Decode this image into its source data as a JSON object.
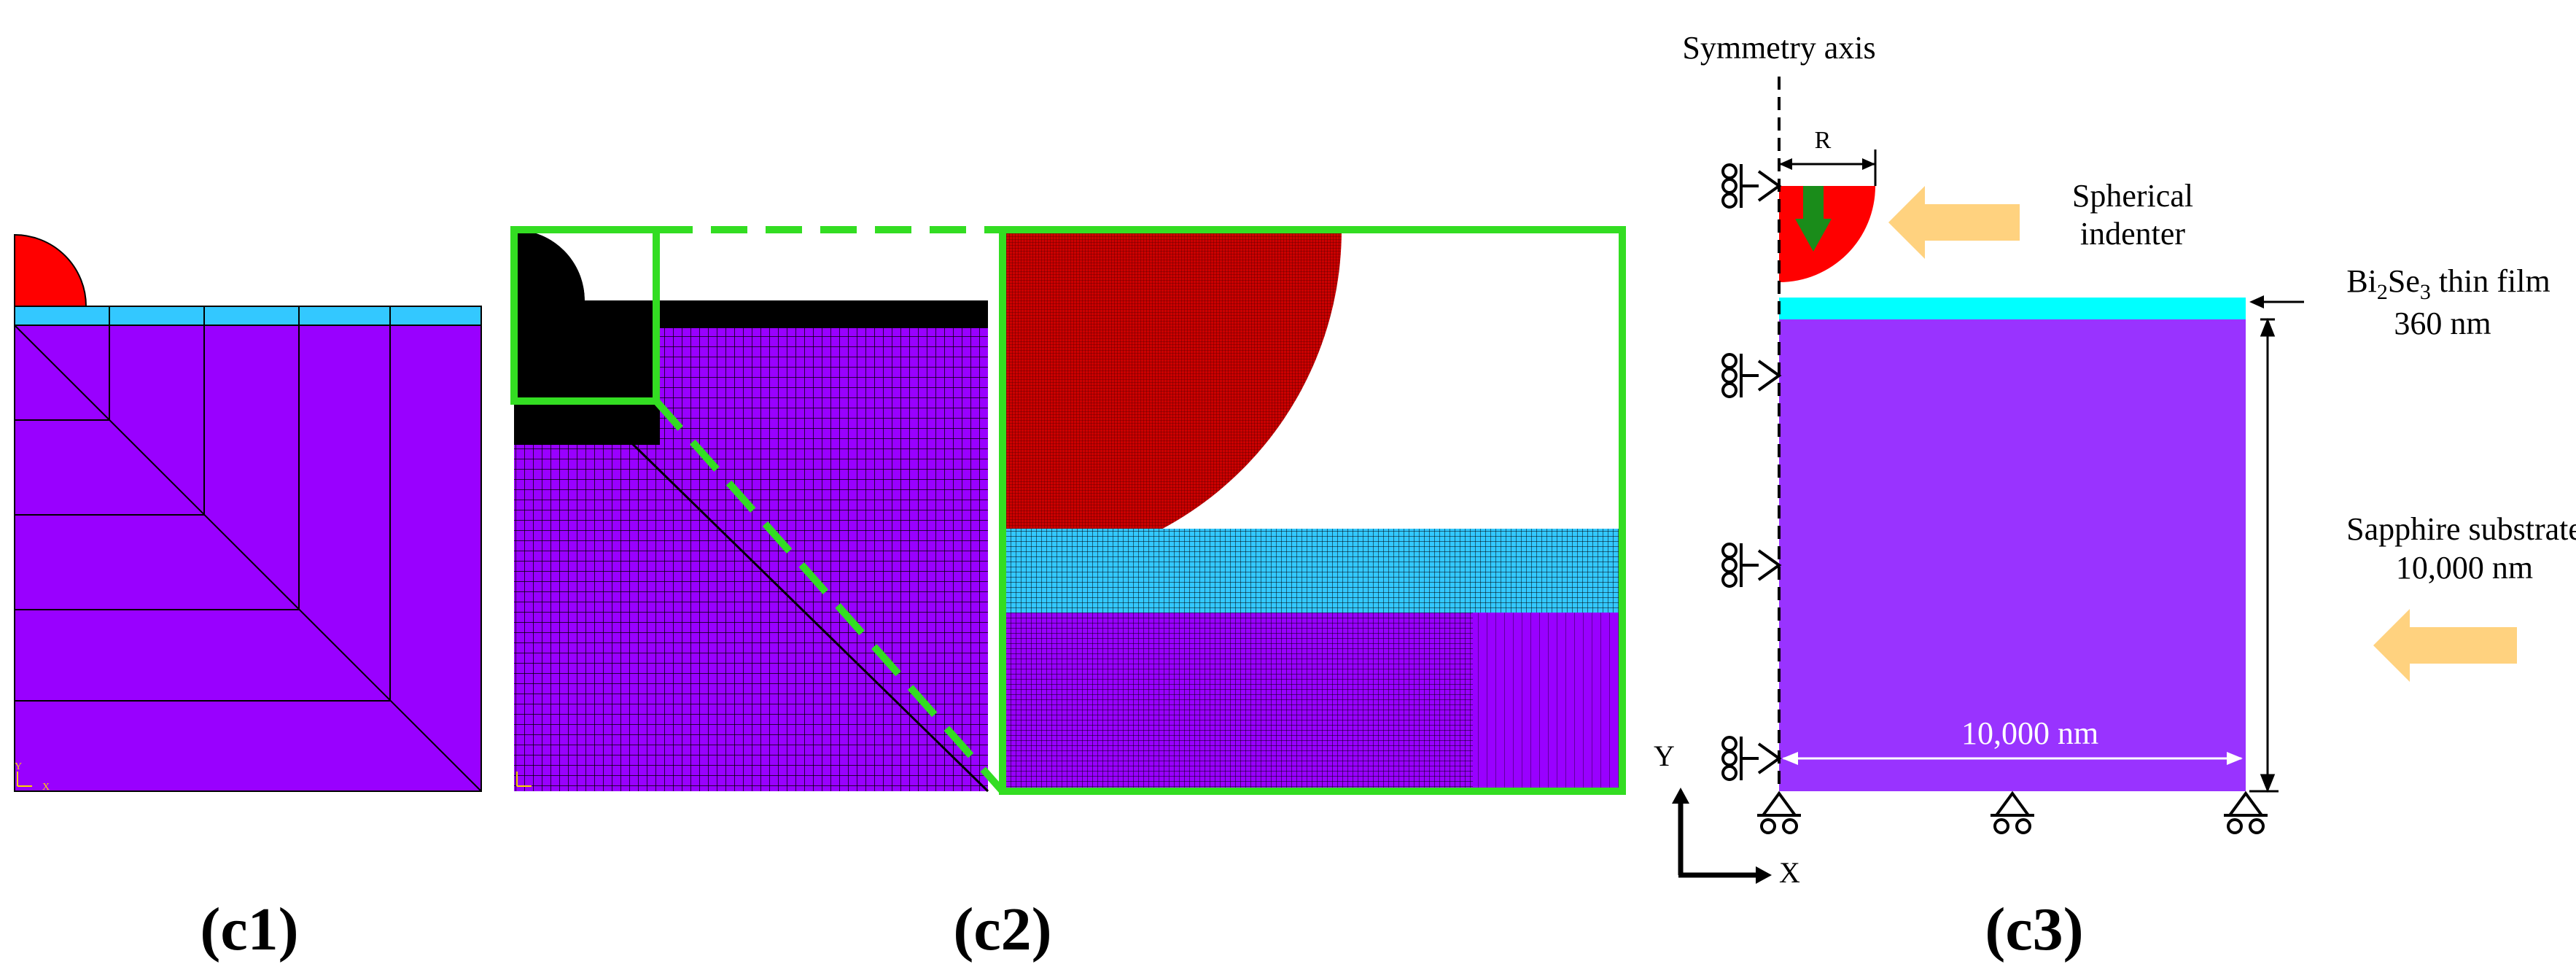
{
  "panels": {
    "c1": {
      "label": "(c1)"
    },
    "c2": {
      "label": "(c2)"
    },
    "c3": {
      "label": "(c3)",
      "symmetry_axis": "Symmetry axis",
      "radius_label": "R",
      "indenter_line1": "Spherical",
      "indenter_line2": "indenter",
      "film_line1_a": "Bi",
      "film_line1_sub1": "2",
      "film_line1_b": "Se",
      "film_line1_sub2": "3",
      "film_line1_c": " thin film",
      "film_thickness": "360 nm",
      "substrate_line1": "Sapphire substrate",
      "substrate_line2": "10,000 nm",
      "width_label": "10,000 nm",
      "y_axis": "Y",
      "x_axis": "X"
    }
  },
  "small_axis_labels": {
    "y": "Y",
    "x": "X"
  },
  "colors": {
    "indenter": "#ff0000",
    "film": "#33c8ff",
    "film_c3": "#00ffff",
    "substrate": "#9900ff",
    "substrate_c3": "#9933ff",
    "highlight": "#33dd22",
    "arrow": "#ffd27f"
  }
}
